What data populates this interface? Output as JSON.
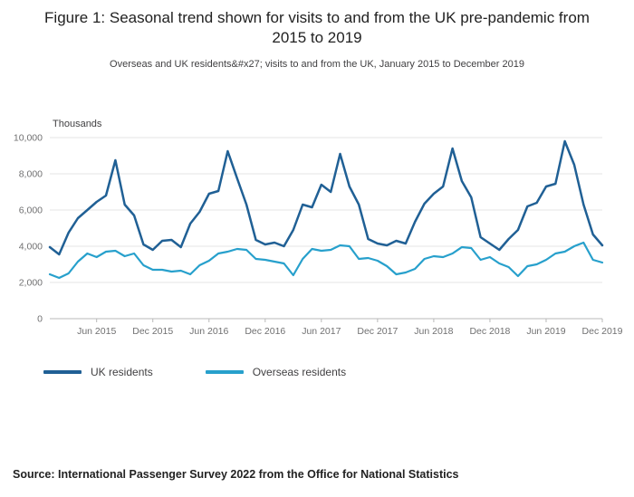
{
  "figure": {
    "title": "Figure 1: Seasonal trend shown for visits to and from the UK pre-pandemic from 2015 to 2019",
    "subtitle": "Overseas and UK residents&#x27; visits to and from the UK, January 2015 to December 2019",
    "source": "Source: International Passenger Survey 2022 from the Office for National Statistics"
  },
  "chart_data": {
    "type": "line",
    "unit_label": "Thousands",
    "ylim": [
      0,
      10000
    ],
    "grid": "horizontal",
    "legend_position": "bottom",
    "y_ticks": [
      {
        "value": 0,
        "label": "0"
      },
      {
        "value": 2000,
        "label": "2,000"
      },
      {
        "value": 4000,
        "label": "4,000"
      },
      {
        "value": 6000,
        "label": "6,000"
      },
      {
        "value": 8000,
        "label": "8,000"
      },
      {
        "value": 10000,
        "label": "10,000"
      }
    ],
    "x_ticks": [
      {
        "index": 5,
        "label": "Jun 2015"
      },
      {
        "index": 11,
        "label": "Dec 2015"
      },
      {
        "index": 17,
        "label": "Jun 2016"
      },
      {
        "index": 23,
        "label": "Dec 2016"
      },
      {
        "index": 29,
        "label": "Jun 2017"
      },
      {
        "index": 35,
        "label": "Dec 2017"
      },
      {
        "index": 41,
        "label": "Jun 2018"
      },
      {
        "index": 47,
        "label": "Dec 2018"
      },
      {
        "index": 53,
        "label": "Jun 2019"
      },
      {
        "index": 59,
        "label": "Dec 2019"
      }
    ],
    "categories": [
      "Jan 2015",
      "Feb 2015",
      "Mar 2015",
      "Apr 2015",
      "May 2015",
      "Jun 2015",
      "Jul 2015",
      "Aug 2015",
      "Sep 2015",
      "Oct 2015",
      "Nov 2015",
      "Dec 2015",
      "Jan 2016",
      "Feb 2016",
      "Mar 2016",
      "Apr 2016",
      "May 2016",
      "Jun 2016",
      "Jul 2016",
      "Aug 2016",
      "Sep 2016",
      "Oct 2016",
      "Nov 2016",
      "Dec 2016",
      "Jan 2017",
      "Feb 2017",
      "Mar 2017",
      "Apr 2017",
      "May 2017",
      "Jun 2017",
      "Jul 2017",
      "Aug 2017",
      "Sep 2017",
      "Oct 2017",
      "Nov 2017",
      "Dec 2017",
      "Jan 2018",
      "Feb 2018",
      "Mar 2018",
      "Apr 2018",
      "May 2018",
      "Jun 2018",
      "Jul 2018",
      "Aug 2018",
      "Sep 2018",
      "Oct 2018",
      "Nov 2018",
      "Dec 2018",
      "Jan 2019",
      "Feb 2019",
      "Mar 2019",
      "Apr 2019",
      "May 2019",
      "Jun 2019",
      "Jul 2019",
      "Aug 2019",
      "Sep 2019",
      "Oct 2019",
      "Nov 2019",
      "Dec 2019"
    ],
    "series": [
      {
        "name": "UK residents",
        "color": "#206095",
        "values": [
          3950,
          3550,
          4750,
          5550,
          6000,
          6450,
          6800,
          8750,
          6300,
          5700,
          4100,
          3800,
          4300,
          4350,
          3950,
          5250,
          5900,
          6900,
          7050,
          9250,
          7750,
          6300,
          4350,
          4100,
          4200,
          4000,
          4900,
          6300,
          6150,
          7400,
          7000,
          9100,
          7300,
          6300,
          4400,
          4150,
          4050,
          4300,
          4150,
          5350,
          6350,
          6900,
          7300,
          9400,
          7600,
          6700,
          4500,
          4150,
          3800,
          4400,
          4900,
          6200,
          6400,
          7300,
          7450,
          9800,
          8500,
          6300,
          4650,
          4050
        ]
      },
      {
        "name": "Overseas residents",
        "color": "#27a0cc",
        "values": [
          2450,
          2250,
          2500,
          3150,
          3600,
          3400,
          3700,
          3750,
          3450,
          3600,
          2950,
          2700,
          2700,
          2600,
          2650,
          2450,
          2950,
          3200,
          3600,
          3700,
          3850,
          3800,
          3300,
          3250,
          3150,
          3050,
          2400,
          3300,
          3850,
          3750,
          3800,
          4050,
          4000,
          3300,
          3350,
          3200,
          2900,
          2450,
          2550,
          2750,
          3300,
          3450,
          3400,
          3600,
          3950,
          3900,
          3250,
          3400,
          3050,
          2850,
          2350,
          2900,
          3000,
          3250,
          3600,
          3700,
          4000,
          4200,
          3250,
          3100
        ]
      }
    ]
  }
}
